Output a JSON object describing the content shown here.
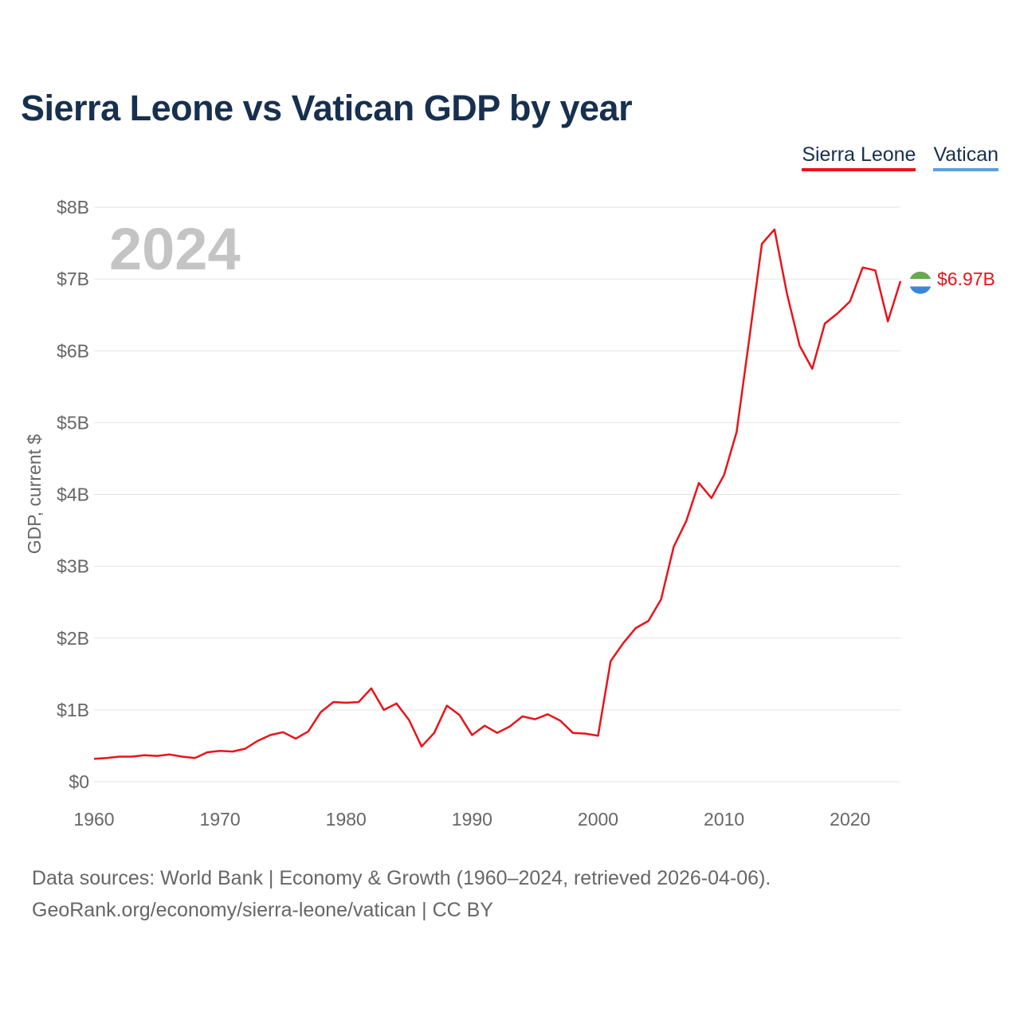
{
  "title": "Sierra Leone vs Vatican GDP by year",
  "legend": {
    "sierra_leone": "Sierra Leone",
    "vatican": "Vatican"
  },
  "colors": {
    "sierra_leone": "#e8141a",
    "vatican": "#5aa0e0",
    "title": "#17304f",
    "axis_text": "#666666",
    "year_watermark": "#c4c4c4",
    "flag_green": "#6aa84f",
    "flag_white": "#ffffff",
    "flag_blue": "#3a86d8"
  },
  "footer": {
    "sources": "Data sources: World Bank | Economy & Growth (1960–2024, retrieved 2026-04-06).",
    "link": "GeoRank.org/economy/sierra-leone/vatican | CC BY"
  },
  "chart_data": {
    "type": "line",
    "ylabel": "GDP, current $",
    "ylim": [
      0,
      8
    ],
    "y_unit": "billions USD",
    "yticks": [
      {
        "value": 0,
        "label": "$0"
      },
      {
        "value": 1,
        "label": "$1B"
      },
      {
        "value": 2,
        "label": "$2B"
      },
      {
        "value": 3,
        "label": "$3B"
      },
      {
        "value": 4,
        "label": "$4B"
      },
      {
        "value": 5,
        "label": "$5B"
      },
      {
        "value": 6,
        "label": "$6B"
      },
      {
        "value": 7,
        "label": "$7B"
      },
      {
        "value": 8,
        "label": "$8B"
      }
    ],
    "xlim": [
      1960,
      2024
    ],
    "xticks": [
      {
        "value": 1960,
        "label": "1960"
      },
      {
        "value": 1970,
        "label": "1970"
      },
      {
        "value": 1980,
        "label": "1980"
      },
      {
        "value": 1990,
        "label": "1990"
      },
      {
        "value": 2000,
        "label": "2000"
      },
      {
        "value": 2010,
        "label": "2010"
      },
      {
        "value": 2020,
        "label": "2020"
      }
    ],
    "current_year": "2024",
    "end_label": "$6.97B",
    "series": [
      {
        "name": "Sierra Leone",
        "x": [
          1960,
          1961,
          1962,
          1963,
          1964,
          1965,
          1966,
          1967,
          1968,
          1969,
          1970,
          1971,
          1972,
          1973,
          1974,
          1975,
          1976,
          1977,
          1978,
          1979,
          1980,
          1981,
          1982,
          1983,
          1984,
          1985,
          1986,
          1987,
          1988,
          1989,
          1990,
          1991,
          1992,
          1993,
          1994,
          1995,
          1996,
          1997,
          1998,
          1999,
          2000,
          2001,
          2002,
          2003,
          2004,
          2005,
          2006,
          2007,
          2008,
          2009,
          2010,
          2011,
          2012,
          2013,
          2014,
          2015,
          2016,
          2017,
          2018,
          2019,
          2020,
          2021,
          2022,
          2023,
          2024
        ],
        "values": [
          0.32,
          0.33,
          0.35,
          0.35,
          0.37,
          0.36,
          0.38,
          0.35,
          0.33,
          0.41,
          0.43,
          0.42,
          0.46,
          0.57,
          0.65,
          0.69,
          0.6,
          0.7,
          0.97,
          1.11,
          1.1,
          1.11,
          1.3,
          1.0,
          1.09,
          0.86,
          0.49,
          0.68,
          1.06,
          0.93,
          0.65,
          0.78,
          0.68,
          0.77,
          0.91,
          0.87,
          0.94,
          0.85,
          0.68,
          0.67,
          0.64,
          1.68,
          1.93,
          2.14,
          2.24,
          2.54,
          3.27,
          3.63,
          4.16,
          3.95,
          4.27,
          4.87,
          6.17,
          7.49,
          7.69,
          6.79,
          6.07,
          5.75,
          6.38,
          6.52,
          6.69,
          7.16,
          7.12,
          6.41,
          6.97
        ]
      },
      {
        "name": "Vatican",
        "x": [],
        "values": []
      }
    ]
  }
}
